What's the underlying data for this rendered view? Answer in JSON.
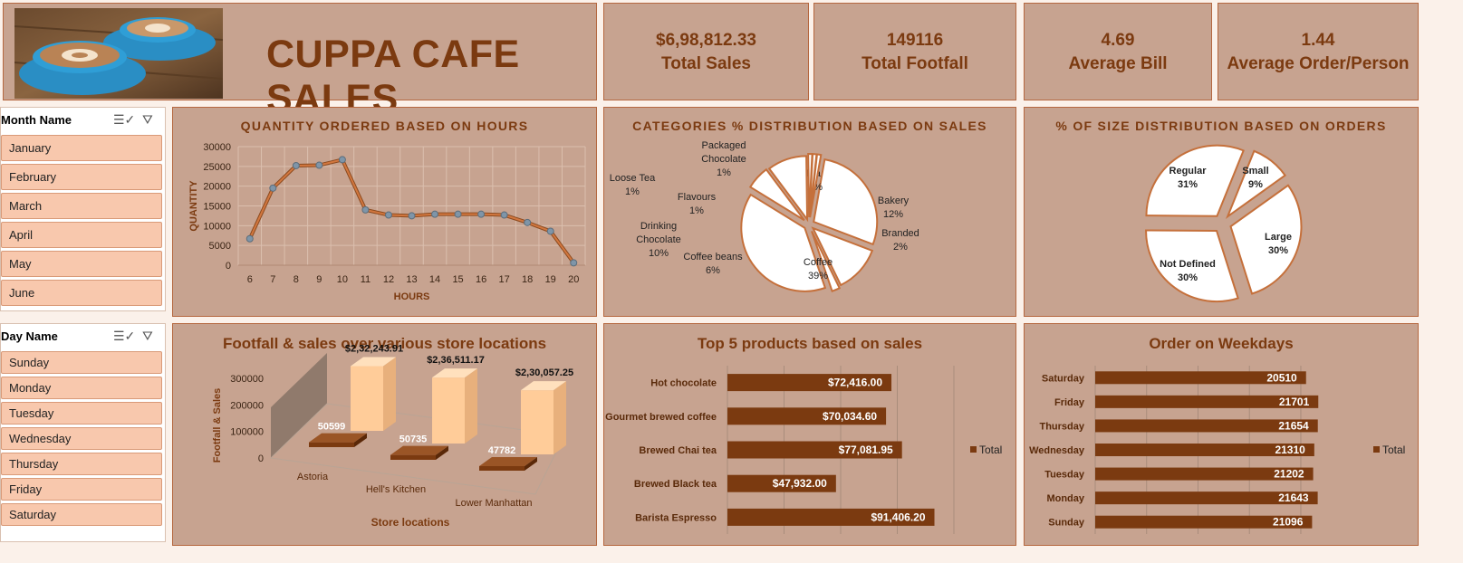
{
  "header": {
    "title": "CUPPA CAFE SALES"
  },
  "kpis": [
    {
      "value": "$6,98,812.33",
      "label": "Total Sales"
    },
    {
      "value": "149116",
      "label": "Total Footfall"
    },
    {
      "value": "4.69",
      "label": "Average Bill"
    },
    {
      "value": "1.44",
      "label": "Average Order/Person"
    }
  ],
  "slicers": {
    "month": {
      "title": "Month Name",
      "items": [
        "January",
        "February",
        "March",
        "April",
        "May",
        "June"
      ]
    },
    "day": {
      "title": "Day Name",
      "items": [
        "Sunday",
        "Monday",
        "Tuesday",
        "Wednesday",
        "Thursday",
        "Friday",
        "Saturday"
      ]
    }
  },
  "colors": {
    "panel": "#c7a390",
    "accent": "#7b3a10",
    "line": "#d2773f",
    "bar": "#7b3a10",
    "light_bar": "#ffcc99"
  },
  "chart_data": [
    {
      "type": "line",
      "title": "QUANTITY ORDERED BASED ON HOURS",
      "xlabel": "HOURS",
      "ylabel": "QUANTITY",
      "x": [
        6,
        7,
        8,
        9,
        10,
        11,
        12,
        13,
        14,
        15,
        16,
        17,
        18,
        19,
        20
      ],
      "values": [
        6700,
        19500,
        25200,
        25300,
        26700,
        14000,
        12700,
        12500,
        12900,
        12900,
        12900,
        12700,
        10800,
        8600,
        600
      ],
      "ylim": [
        0,
        30000
      ],
      "yticks": [
        0,
        5000,
        10000,
        15000,
        20000,
        25000,
        30000
      ],
      "grid": true
    },
    {
      "type": "pie",
      "title": "CATEGORIES % DISTRIBUTION BASED ON SALES",
      "slices": [
        {
          "label": "Tea",
          "value": "28%",
          "pct": 28
        },
        {
          "label": "Bakery",
          "value": "12%",
          "pct": 12
        },
        {
          "label": "Branded",
          "value": "2%",
          "pct": 2
        },
        {
          "label": "Coffee",
          "value": "39%",
          "pct": 39
        },
        {
          "label": "Coffee beans",
          "value": "6%",
          "pct": 6
        },
        {
          "label": "Drinking Chocolate",
          "value": "10%",
          "pct": 10
        },
        {
          "label": "Flavours",
          "value": "1%",
          "pct": 1
        },
        {
          "label": "Loose Tea",
          "value": "1%",
          "pct": 1
        },
        {
          "label": "Packaged Chocolate",
          "value": "1%",
          "pct": 1
        }
      ]
    },
    {
      "type": "pie",
      "title": "% OF SIZE DISTRIBUTION BASED ON ORDERS",
      "slices": [
        {
          "label": "Small",
          "value": "9%",
          "pct": 9
        },
        {
          "label": "Large",
          "value": "30%",
          "pct": 30
        },
        {
          "label": "Not Defined",
          "value": "30%",
          "pct": 30
        },
        {
          "label": "Regular",
          "value": "31%",
          "pct": 31
        }
      ]
    },
    {
      "type": "bar",
      "title": "Footfall & sales over various store locations",
      "xlabel": "Store locations",
      "ylabel": "Footfall & Sales",
      "categories": [
        "Astoria",
        "Hell's Kitchen",
        "Lower Manhattan"
      ],
      "series": [
        {
          "values": [
            50599,
            50735,
            47782
          ],
          "labels": [
            "50599",
            "50735",
            "47782"
          ]
        },
        {
          "values": [
            232243.91,
            236511.17,
            230057.25
          ],
          "labels": [
            "$2,32,243.91",
            "$2,36,511.17",
            "$2,30,057.25"
          ]
        }
      ],
      "ylim": [
        0,
        300000
      ],
      "yticks": [
        0,
        100000,
        200000,
        300000
      ]
    },
    {
      "type": "bar",
      "title": "Top 5 products based on sales",
      "orientation": "horizontal",
      "categories": [
        "Hot chocolate",
        "Gourmet brewed coffee",
        "Brewed Chai tea",
        "Brewed Black tea",
        "Barista Espresso"
      ],
      "values": [
        72416.0,
        70034.6,
        77081.95,
        47932.0,
        91406.2
      ],
      "labels": [
        "$72,416.00",
        "$70,034.60",
        "$77,081.95",
        "$47,932.00",
        "$91,406.20"
      ],
      "legend": "Total",
      "legend_position": "right"
    },
    {
      "type": "bar",
      "title": "Order on Weekdays",
      "orientation": "horizontal",
      "categories": [
        "Saturday",
        "Friday",
        "Thursday",
        "Wednesday",
        "Tuesday",
        "Monday",
        "Sunday"
      ],
      "values": [
        20510,
        21701,
        21654,
        21310,
        21202,
        21643,
        21096
      ],
      "labels": [
        "20510",
        "21701",
        "21654",
        "21310",
        "21202",
        "21643",
        "21096"
      ],
      "legend": "Total",
      "legend_position": "right"
    }
  ]
}
